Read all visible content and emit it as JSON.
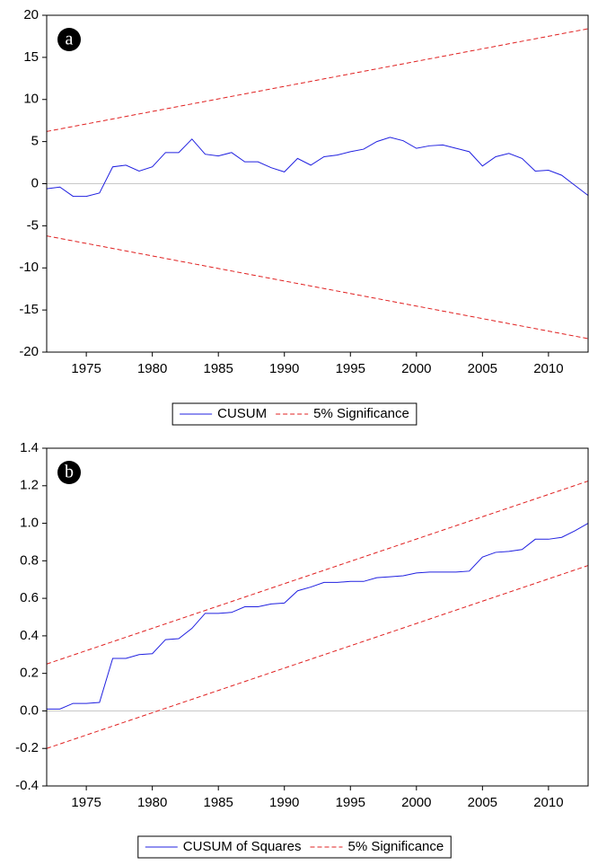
{
  "chart_data": [
    {
      "type": "line",
      "label": "a",
      "xlim": [
        1972,
        2013
      ],
      "xticks": [
        1975,
        1980,
        1985,
        1990,
        1995,
        2000,
        2005,
        2010
      ],
      "ylim": [
        -20,
        20
      ],
      "yticks": [
        20,
        15,
        10,
        5,
        0,
        -5,
        -10,
        -15,
        -20
      ],
      "series": [
        {
          "name": "CUSUM",
          "color": "#2020e0",
          "style": "solid",
          "x": [
            1972,
            1973,
            1974,
            1975,
            1976,
            1977,
            1978,
            1979,
            1980,
            1981,
            1982,
            1983,
            1984,
            1985,
            1986,
            1987,
            1988,
            1989,
            1990,
            1991,
            1992,
            1993,
            1994,
            1995,
            1996,
            1997,
            1998,
            1999,
            2000,
            2001,
            2002,
            2003,
            2004,
            2005,
            2006,
            2007,
            2008,
            2009,
            2010,
            2011,
            2012,
            2013
          ],
          "values": [
            -0.6,
            -0.4,
            -1.5,
            -1.5,
            -1.1,
            2.0,
            2.2,
            1.5,
            2.0,
            3.7,
            3.7,
            5.3,
            3.5,
            3.3,
            3.7,
            2.6,
            2.6,
            1.9,
            1.4,
            3.0,
            2.2,
            3.2,
            3.4,
            3.8,
            4.1,
            5.0,
            5.5,
            5.1,
            4.2,
            4.5,
            4.6,
            4.2,
            3.8,
            2.1,
            3.2,
            3.6,
            3.0,
            1.5,
            1.6,
            1.0,
            -0.2,
            -1.4
          ]
        },
        {
          "name": "5% Significance",
          "color": "#e02020",
          "style": "dashed",
          "x": [
            1972,
            2013
          ],
          "upper": [
            6.2,
            18.4
          ],
          "lower": [
            -6.2,
            -18.4
          ]
        }
      ]
    },
    {
      "type": "line",
      "label": "b",
      "xlim": [
        1972,
        2013
      ],
      "xticks": [
        1975,
        1980,
        1985,
        1990,
        1995,
        2000,
        2005,
        2010
      ],
      "ylim": [
        -0.4,
        1.4
      ],
      "yticks": [
        1.4,
        1.2,
        {
          "value": 1,
          "label": "1.0"
        },
        0.8,
        0.6,
        0.4,
        0.2,
        {
          "value": 0,
          "label": "0.0"
        },
        -0.2,
        -0.4
      ],
      "series": [
        {
          "name": "CUSUM of Squares",
          "color": "#2020e0",
          "style": "solid",
          "x": [
            1972,
            1973,
            1974,
            1975,
            1976,
            1977,
            1978,
            1979,
            1980,
            1981,
            1982,
            1983,
            1984,
            1985,
            1986,
            1987,
            1988,
            1989,
            1990,
            1991,
            1992,
            1993,
            1994,
            1995,
            1996,
            1997,
            1998,
            1999,
            2000,
            2001,
            2002,
            2003,
            2004,
            2005,
            2006,
            2007,
            2008,
            2009,
            2010,
            2011,
            2012,
            2013
          ],
          "values": [
            0.01,
            0.01,
            0.04,
            0.04,
            0.045,
            0.28,
            0.28,
            0.3,
            0.305,
            0.38,
            0.385,
            0.44,
            0.52,
            0.52,
            0.525,
            0.555,
            0.555,
            0.57,
            0.575,
            0.64,
            0.66,
            0.685,
            0.685,
            0.69,
            0.69,
            0.71,
            0.715,
            0.72,
            0.735,
            0.74,
            0.74,
            0.74,
            0.745,
            0.82,
            0.845,
            0.85,
            0.86,
            0.915,
            0.915,
            0.925,
            0.96,
            1.0
          ]
        },
        {
          "name": "5% Significance",
          "color": "#e02020",
          "style": "dashed",
          "x": [
            1972,
            2013
          ],
          "upper": [
            0.25,
            1.225
          ],
          "lower": [
            -0.2,
            0.775
          ]
        }
      ]
    }
  ]
}
